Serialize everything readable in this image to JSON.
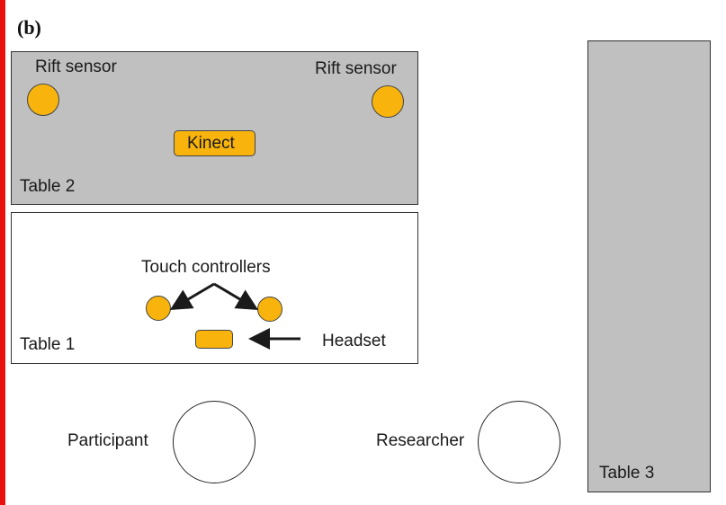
{
  "panel_label": "(b)",
  "table2": {
    "label": "Table 2",
    "sensor_left": "Rift sensor",
    "sensor_right": "Rift sensor",
    "kinect": "Kinect"
  },
  "table1": {
    "label": "Table 1",
    "touch_controllers": "Touch controllers",
    "headset": "Headset"
  },
  "table3": {
    "label": "Table 3"
  },
  "people": {
    "participant": "Participant",
    "researcher": "Researcher"
  },
  "colors": {
    "device": "#f8b40c",
    "table_fill": "#c0c0c0",
    "edge_bar": "#e8120c"
  }
}
